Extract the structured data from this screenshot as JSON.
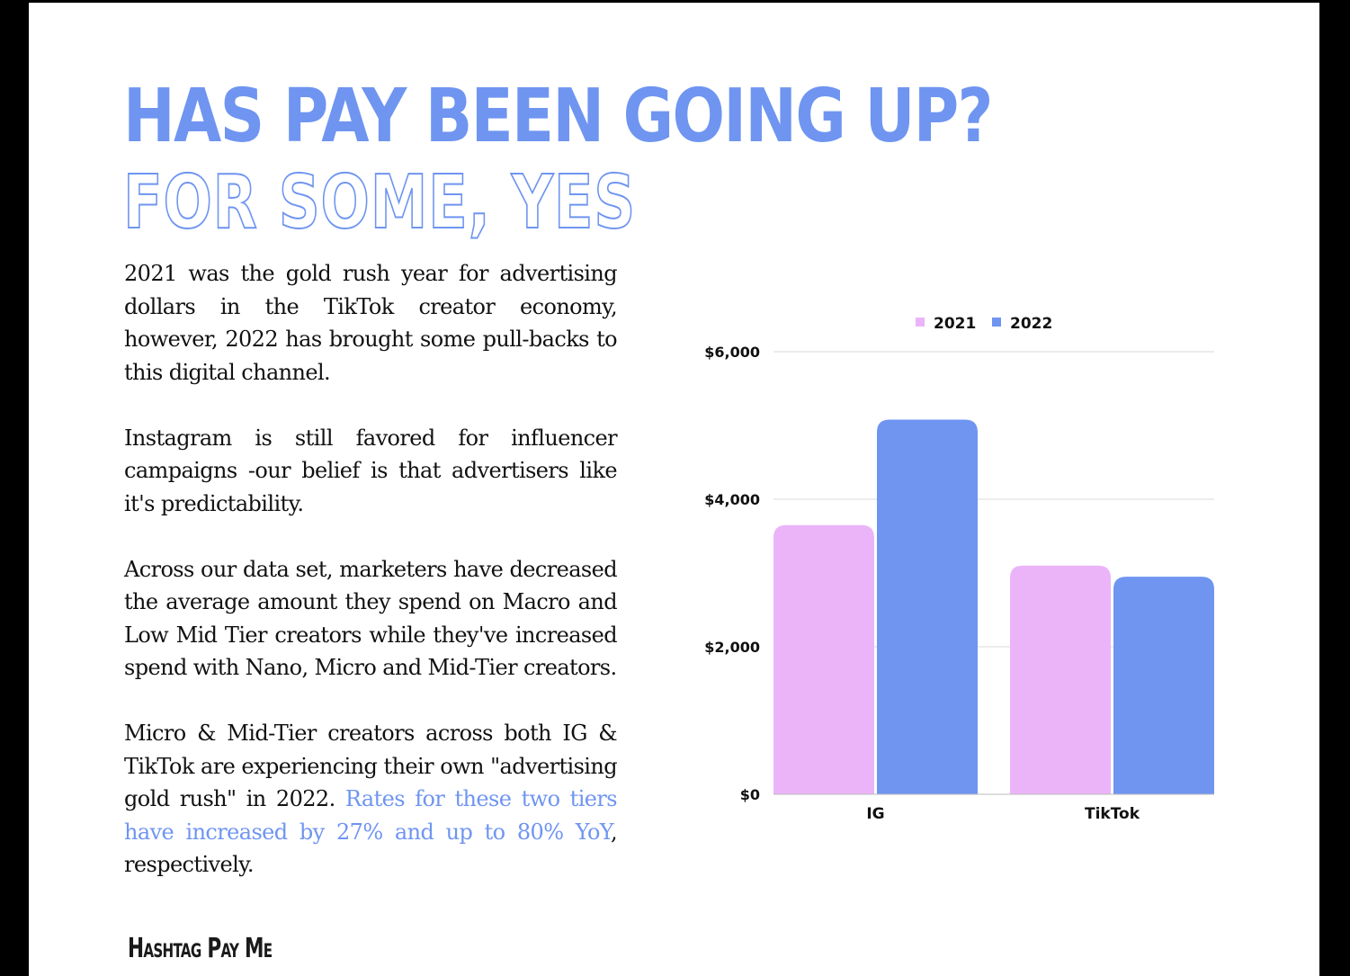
{
  "heading": {
    "line1": "HAS PAY BEEN GOING UP?",
    "line2": "FOR SOME, YES"
  },
  "body": {
    "p1": "2021 was the gold rush year for advertising dollars in the TikTok creator economy, however, 2022 has brought some pull-backs to this digital channel.",
    "p2": "Instagram is still favored for influencer campaigns -our belief is that advertisers like it's predictability.",
    "p3": "Across our data set, marketers have decreased the average amount they spend on Macro and Low Mid Tier creators while they've increased spend with Nano, Micro and Mid-Tier creators.",
    "p4_start": "Micro & Mid-Tier creators across both IG & TikTok are experiencing their own \"advertising gold rush\" in 2022. ",
    "p4_highlight": "Rates for these two tiers have increased by 27% and up to 80% YoY",
    "p4_end": ", respectively."
  },
  "brand": "Hashtag Pay Me",
  "colors": {
    "accent": "#6f95f1",
    "series_2021": "#ebb4f9",
    "series_2022": "#6f95f1"
  },
  "chart_data": {
    "type": "bar",
    "categories": [
      "IG",
      "TikTok"
    ],
    "series": [
      {
        "name": "2021",
        "values": [
          3650,
          3100
        ]
      },
      {
        "name": "2022",
        "values": [
          5080,
          2950
        ]
      }
    ],
    "yticks": [
      "$0",
      "$2,000",
      "$4,000",
      "$6,000"
    ],
    "ylim": [
      0,
      6000
    ],
    "grid": true,
    "legend": "top-center",
    "title": "",
    "xlabel": "",
    "ylabel": ""
  }
}
